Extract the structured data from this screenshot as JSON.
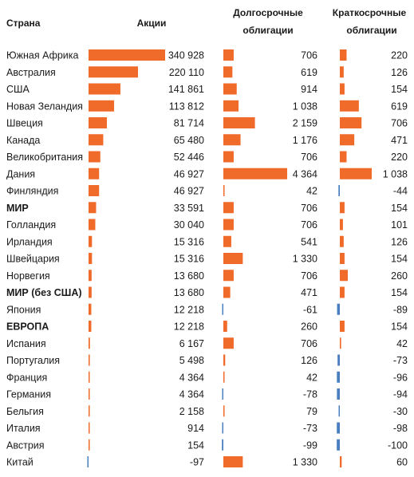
{
  "chart_data": {
    "type": "table",
    "title": "",
    "headers": {
      "country": "Страна",
      "equity": "Акции",
      "long_bonds": [
        "Долгосрочные",
        "облигации"
      ],
      "short_bonds": [
        "Краткосрочные",
        "облигации"
      ]
    },
    "colors": {
      "positive": "#f06a2a",
      "negative": "#4a7fbf"
    },
    "rows": [
      {
        "country": "Южная Африка",
        "bold": false,
        "equity": 340928,
        "equity_label": "340 928",
        "long": 706,
        "long_label": "706",
        "short": 220,
        "short_label": "220"
      },
      {
        "country": "Австралия",
        "bold": false,
        "equity": 220110,
        "equity_label": "220 110",
        "long": 619,
        "long_label": "619",
        "short": 126,
        "short_label": "126"
      },
      {
        "country": "США",
        "bold": false,
        "equity": 141861,
        "equity_label": "141 861",
        "long": 914,
        "long_label": "914",
        "short": 154,
        "short_label": "154"
      },
      {
        "country": "Новая Зеландия",
        "bold": false,
        "equity": 113812,
        "equity_label": "113 812",
        "long": 1038,
        "long_label": "1 038",
        "short": 619,
        "short_label": "619"
      },
      {
        "country": "Швеция",
        "bold": false,
        "equity": 81714,
        "equity_label": "81 714",
        "long": 2159,
        "long_label": "2 159",
        "short": 706,
        "short_label": "706"
      },
      {
        "country": "Канада",
        "bold": false,
        "equity": 65480,
        "equity_label": "65 480",
        "long": 1176,
        "long_label": "1 176",
        "short": 471,
        "short_label": "471"
      },
      {
        "country": "Великобритания",
        "bold": false,
        "equity": 52446,
        "equity_label": "52 446",
        "long": 706,
        "long_label": "706",
        "short": 220,
        "short_label": "220"
      },
      {
        "country": "Дания",
        "bold": false,
        "equity": 46927,
        "equity_label": "46 927",
        "long": 4364,
        "long_label": "4 364",
        "short": 1038,
        "short_label": "1 038"
      },
      {
        "country": "Финляндия",
        "bold": false,
        "equity": 46927,
        "equity_label": "46 927",
        "long": 42,
        "long_label": "42",
        "short": -44,
        "short_label": "-44"
      },
      {
        "country": "МИР",
        "bold": true,
        "equity": 33591,
        "equity_label": "33 591",
        "long": 706,
        "long_label": "706",
        "short": 154,
        "short_label": "154"
      },
      {
        "country": "Голландия",
        "bold": false,
        "equity": 30040,
        "equity_label": "30 040",
        "long": 706,
        "long_label": "706",
        "short": 101,
        "short_label": "101"
      },
      {
        "country": "Ирландия",
        "bold": false,
        "equity": 15316,
        "equity_label": "15 316",
        "long": 541,
        "long_label": "541",
        "short": 126,
        "short_label": "126"
      },
      {
        "country": "Швейцария",
        "bold": false,
        "equity": 15316,
        "equity_label": "15 316",
        "long": 1330,
        "long_label": "1 330",
        "short": 154,
        "short_label": "154"
      },
      {
        "country": "Норвегия",
        "bold": false,
        "equity": 13680,
        "equity_label": "13 680",
        "long": 706,
        "long_label": "706",
        "short": 260,
        "short_label": "260"
      },
      {
        "country": "МИР (без США)",
        "bold": true,
        "equity": 13680,
        "equity_label": "13 680",
        "long": 471,
        "long_label": "471",
        "short": 154,
        "short_label": "154"
      },
      {
        "country": "Япония",
        "bold": false,
        "equity": 12218,
        "equity_label": "12 218",
        "long": -61,
        "long_label": "-61",
        "short": -89,
        "short_label": "-89"
      },
      {
        "country": "ЕВРОПА",
        "bold": true,
        "equity": 12218,
        "equity_label": "12 218",
        "long": 260,
        "long_label": "260",
        "short": 154,
        "short_label": "154"
      },
      {
        "country": "Испания",
        "bold": false,
        "equity": 6167,
        "equity_label": "6 167",
        "long": 706,
        "long_label": "706",
        "short": 42,
        "short_label": "42"
      },
      {
        "country": "Португалия",
        "bold": false,
        "equity": 5498,
        "equity_label": "5 498",
        "long": 126,
        "long_label": "126",
        "short": -73,
        "short_label": "-73"
      },
      {
        "country": "Франция",
        "bold": false,
        "equity": 4364,
        "equity_label": "4 364",
        "long": 42,
        "long_label": "42",
        "short": -96,
        "short_label": "-96"
      },
      {
        "country": "Германия",
        "bold": false,
        "equity": 4364,
        "equity_label": "4 364",
        "long": -78,
        "long_label": "-78",
        "short": -94,
        "short_label": "-94"
      },
      {
        "country": "Бельгия",
        "bold": false,
        "equity": 2158,
        "equity_label": "2 158",
        "long": 79,
        "long_label": "79",
        "short": -30,
        "short_label": "-30"
      },
      {
        "country": "Италия",
        "bold": false,
        "equity": 914,
        "equity_label": "914",
        "long": -73,
        "long_label": "-73",
        "short": -98,
        "short_label": "-98"
      },
      {
        "country": "Австрия",
        "bold": false,
        "equity": 154,
        "equity_label": "154",
        "long": -99,
        "long_label": "-99",
        "short": -100,
        "short_label": "-100"
      },
      {
        "country": "Китай",
        "bold": false,
        "equity": -97,
        "equity_label": "-97",
        "long": 1330,
        "long_label": "1 330",
        "short": 60,
        "short_label": "60"
      }
    ]
  }
}
